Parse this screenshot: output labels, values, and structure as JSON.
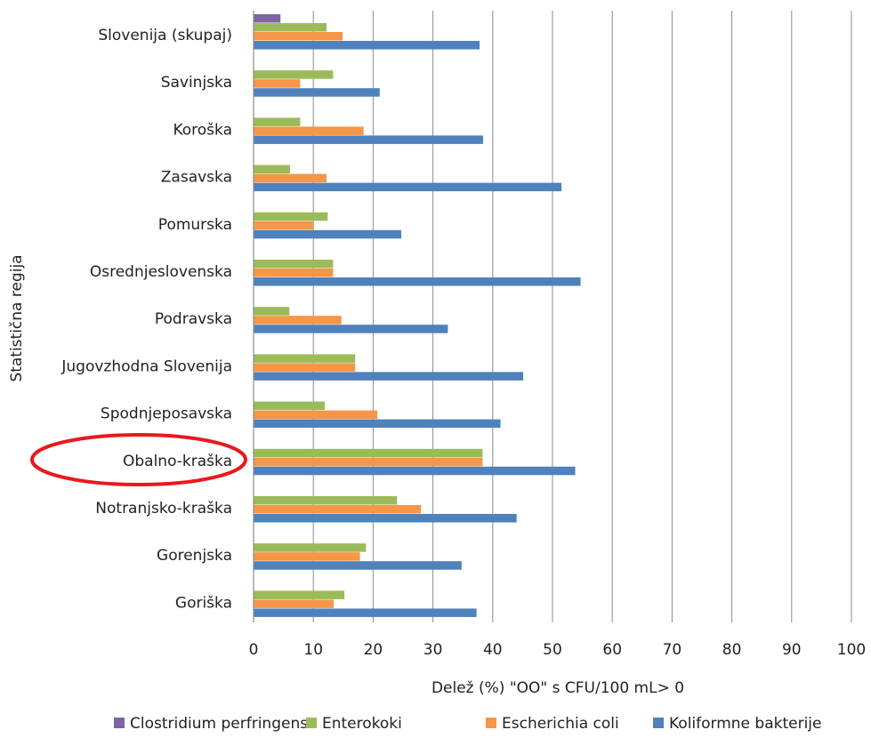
{
  "chart_data": {
    "type": "bar",
    "orientation": "horizontal",
    "xlabel": "Delež (%) \"OO\" s CFU/100 mL> 0",
    "ylabel": "Statistična regija",
    "xlim": [
      0,
      100
    ],
    "xticks": [
      "0",
      "10",
      "20",
      "30",
      "40",
      "50",
      "60",
      "70",
      "80",
      "90",
      "100"
    ],
    "grid": "vertical",
    "legend_position": "bottom",
    "highlighted_category": "Obalno-kraška",
    "categories": [
      "Slovenija (skupaj)",
      "Savinjska",
      "Koroška",
      "Zasavska",
      "Pomurska",
      "Osrednjeslovenska",
      "Podravska",
      "Jugovzhodna Slovenija",
      "Spodnjeposavska",
      "Obalno-kraška",
      "Notranjsko-kraška",
      "Gorenjska",
      "Goriška"
    ],
    "series": [
      {
        "name": "Clostridium perfringens",
        "color": "#8064a2",
        "values": [
          4.5,
          0,
          0,
          0,
          0,
          0,
          0,
          0,
          0,
          0,
          0,
          0,
          0
        ]
      },
      {
        "name": "Enterokoki",
        "color": "#9bbb59",
        "values": [
          12.2,
          13.3,
          7.8,
          6.1,
          12.4,
          13.3,
          6.0,
          17.0,
          11.9,
          38.3,
          24.0,
          18.8,
          15.2
        ]
      },
      {
        "name": "Escherichia coli",
        "color": "#f79646",
        "values": [
          14.9,
          7.8,
          18.4,
          12.2,
          10.0,
          13.3,
          14.7,
          17.0,
          20.7,
          38.3,
          28.0,
          17.8,
          13.4
        ]
      },
      {
        "name": "Koliformne bakterije",
        "color": "#4f81bd",
        "values": [
          37.8,
          21.1,
          38.4,
          51.5,
          24.7,
          54.7,
          32.5,
          45.1,
          41.3,
          53.8,
          44.0,
          34.8,
          37.3
        ]
      }
    ]
  }
}
